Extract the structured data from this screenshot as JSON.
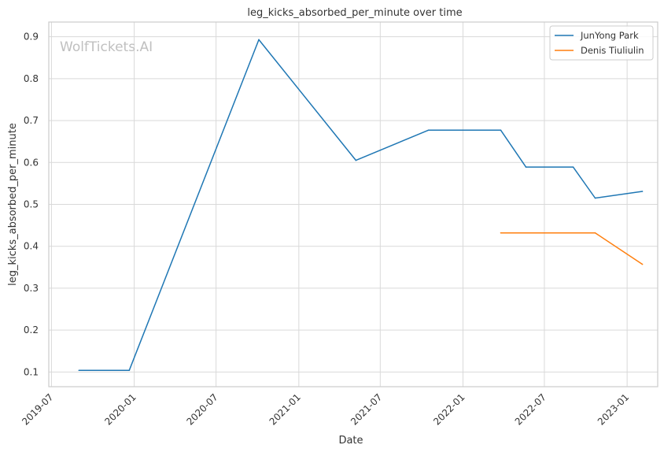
{
  "chart_data": {
    "type": "line",
    "title": "leg_kicks_absorbed_per_minute over time",
    "xlabel": "Date",
    "ylabel": "leg_kicks_absorbed_per_minute",
    "watermark": "WolfTickets.AI",
    "xlim": [
      "2019-06-25",
      "2023-03-10"
    ],
    "ylim": [
      0.065,
      0.935
    ],
    "x_ticks": [
      "2019-07-01",
      "2020-01-01",
      "2020-07-01",
      "2021-01-01",
      "2021-07-01",
      "2022-01-01",
      "2022-07-01",
      "2023-01-01"
    ],
    "x_tick_labels": [
      "2019-07",
      "2020-01",
      "2020-07",
      "2021-01",
      "2021-07",
      "2022-01",
      "2022-07",
      "2023-01"
    ],
    "y_ticks": [
      0.1,
      0.2,
      0.3,
      0.4,
      0.5,
      0.6,
      0.7,
      0.8,
      0.9
    ],
    "y_tick_labels": [
      "0.1",
      "0.2",
      "0.3",
      "0.4",
      "0.5",
      "0.6",
      "0.7",
      "0.8",
      "0.9"
    ],
    "grid": true,
    "legend_position": "top-right",
    "series": [
      {
        "name": "JunYong Park",
        "color": "#1f77b4",
        "x": [
          "2019-08-31",
          "2019-12-21",
          "2020-10-04",
          "2021-05-08",
          "2021-10-16",
          "2022-03-26",
          "2022-05-21",
          "2022-09-03",
          "2022-10-22",
          "2023-02-04"
        ],
        "y": [
          0.104,
          0.104,
          0.893,
          0.605,
          0.677,
          0.677,
          0.589,
          0.589,
          0.515,
          0.531
        ]
      },
      {
        "name": "Denis Tiuliulin",
        "color": "#ff7f0e",
        "x": [
          "2022-03-26",
          "2022-10-22",
          "2023-02-04"
        ],
        "y": [
          0.432,
          0.432,
          0.357
        ]
      }
    ]
  }
}
